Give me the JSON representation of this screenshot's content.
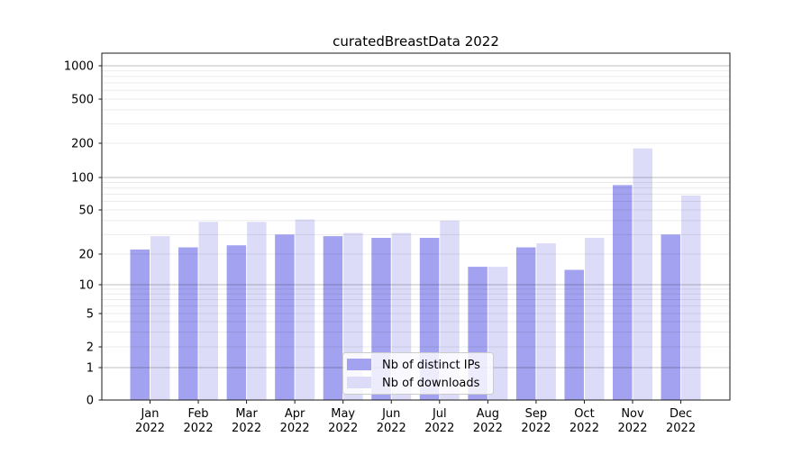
{
  "chart_data": {
    "type": "bar",
    "title": "curatedBreastData 2022",
    "categories": [
      "Jan",
      "Feb",
      "Mar",
      "Apr",
      "May",
      "Jun",
      "Jul",
      "Aug",
      "Sep",
      "Oct",
      "Nov",
      "Dec"
    ],
    "x_tick_second_line": "2022",
    "series": [
      {
        "name": "Nb of distinct IPs",
        "color": "#a2a2f0",
        "values": [
          22,
          23,
          24,
          30,
          29,
          28,
          28,
          15,
          23,
          14,
          85,
          30
        ]
      },
      {
        "name": "Nb of downloads",
        "color": "#dcdcf8",
        "values": [
          29,
          39,
          39,
          41,
          31,
          31,
          40,
          15,
          25,
          28,
          180,
          68
        ]
      }
    ],
    "yscale": "symlog",
    "yticks": [
      0,
      1,
      2,
      5,
      10,
      20,
      50,
      100,
      200,
      500,
      1000
    ],
    "ylim": [
      0,
      1150
    ],
    "grid": true,
    "legend_position": "lower-center-inside"
  }
}
